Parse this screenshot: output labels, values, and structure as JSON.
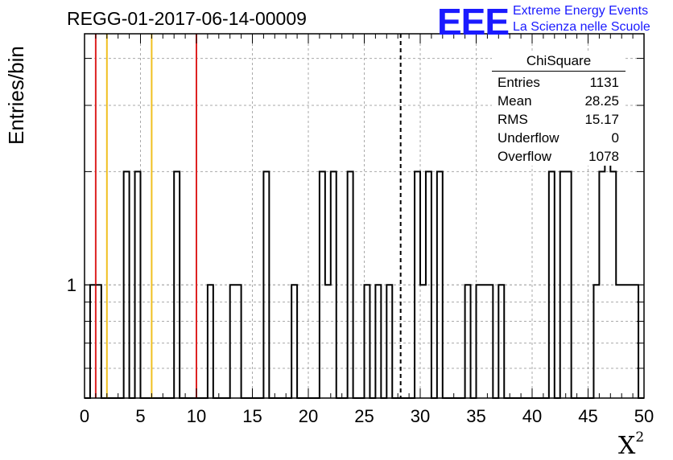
{
  "chart_data": {
    "type": "bar",
    "title": "REGG-01-2017-06-14-00009",
    "xlabel": "X",
    "xlabel_sup": "2",
    "ylabel": "Entries/bin",
    "xlim": [
      0,
      50
    ],
    "ylim_log": [
      0.5,
      4.65
    ],
    "log_y": true,
    "grid": true,
    "bin_width": 0.5,
    "xticks": [
      0,
      5,
      10,
      15,
      20,
      25,
      30,
      35,
      40,
      45,
      50
    ],
    "ytick_labels": [
      {
        "value": 1,
        "label": "1"
      }
    ],
    "bins": [
      {
        "x": 0.5,
        "y": 1
      },
      {
        "x": 1.0,
        "y": 1
      },
      {
        "x": 3.5,
        "y": 2
      },
      {
        "x": 4.5,
        "y": 2
      },
      {
        "x": 8.0,
        "y": 2
      },
      {
        "x": 11.0,
        "y": 1
      },
      {
        "x": 13.0,
        "y": 1
      },
      {
        "x": 13.5,
        "y": 1
      },
      {
        "x": 16.0,
        "y": 2
      },
      {
        "x": 18.5,
        "y": 1
      },
      {
        "x": 21.0,
        "y": 2
      },
      {
        "x": 21.5,
        "y": 1
      },
      {
        "x": 22.0,
        "y": 2
      },
      {
        "x": 23.5,
        "y": 2
      },
      {
        "x": 25.0,
        "y": 1
      },
      {
        "x": 26.0,
        "y": 1
      },
      {
        "x": 27.0,
        "y": 1
      },
      {
        "x": 29.5,
        "y": 2
      },
      {
        "x": 30.0,
        "y": 1
      },
      {
        "x": 30.5,
        "y": 2
      },
      {
        "x": 31.5,
        "y": 2
      },
      {
        "x": 34.0,
        "y": 1
      },
      {
        "x": 35.0,
        "y": 1
      },
      {
        "x": 35.5,
        "y": 1
      },
      {
        "x": 36.0,
        "y": 1
      },
      {
        "x": 37.0,
        "y": 1
      },
      {
        "x": 41.5,
        "y": 2
      },
      {
        "x": 42.5,
        "y": 2
      },
      {
        "x": 43.0,
        "y": 2
      },
      {
        "x": 45.5,
        "y": 1
      },
      {
        "x": 46.0,
        "y": 2
      },
      {
        "x": 46.5,
        "y": 3
      },
      {
        "x": 47.0,
        "y": 2
      },
      {
        "x": 47.5,
        "y": 1
      },
      {
        "x": 48.0,
        "y": 1
      },
      {
        "x": 48.5,
        "y": 1
      },
      {
        "x": 49.0,
        "y": 1
      }
    ],
    "vertical_lines": [
      {
        "x": 1,
        "color": "#dd2222",
        "style": "solid"
      },
      {
        "x": 2,
        "color": "#f0c020",
        "style": "solid"
      },
      {
        "x": 6,
        "color": "#f0c020",
        "style": "solid"
      },
      {
        "x": 10,
        "color": "#dd2222",
        "style": "solid"
      },
      {
        "x": 28.25,
        "color": "#000000",
        "style": "dashed"
      }
    ]
  },
  "stats_box": {
    "title": "ChiSquare",
    "rows": [
      {
        "label": "Entries",
        "value": "1131"
      },
      {
        "label": "Mean",
        "value": "28.25"
      },
      {
        "label": "RMS",
        "value": "15.17"
      },
      {
        "label": "Underflow",
        "value": "0"
      },
      {
        "label": "Overflow",
        "value": "1078"
      }
    ]
  },
  "logo": {
    "mark": "EEE",
    "line1": "Extreme Energy Events",
    "line2": "La Scienza nelle Scuole",
    "color": "#1a1aff"
  }
}
